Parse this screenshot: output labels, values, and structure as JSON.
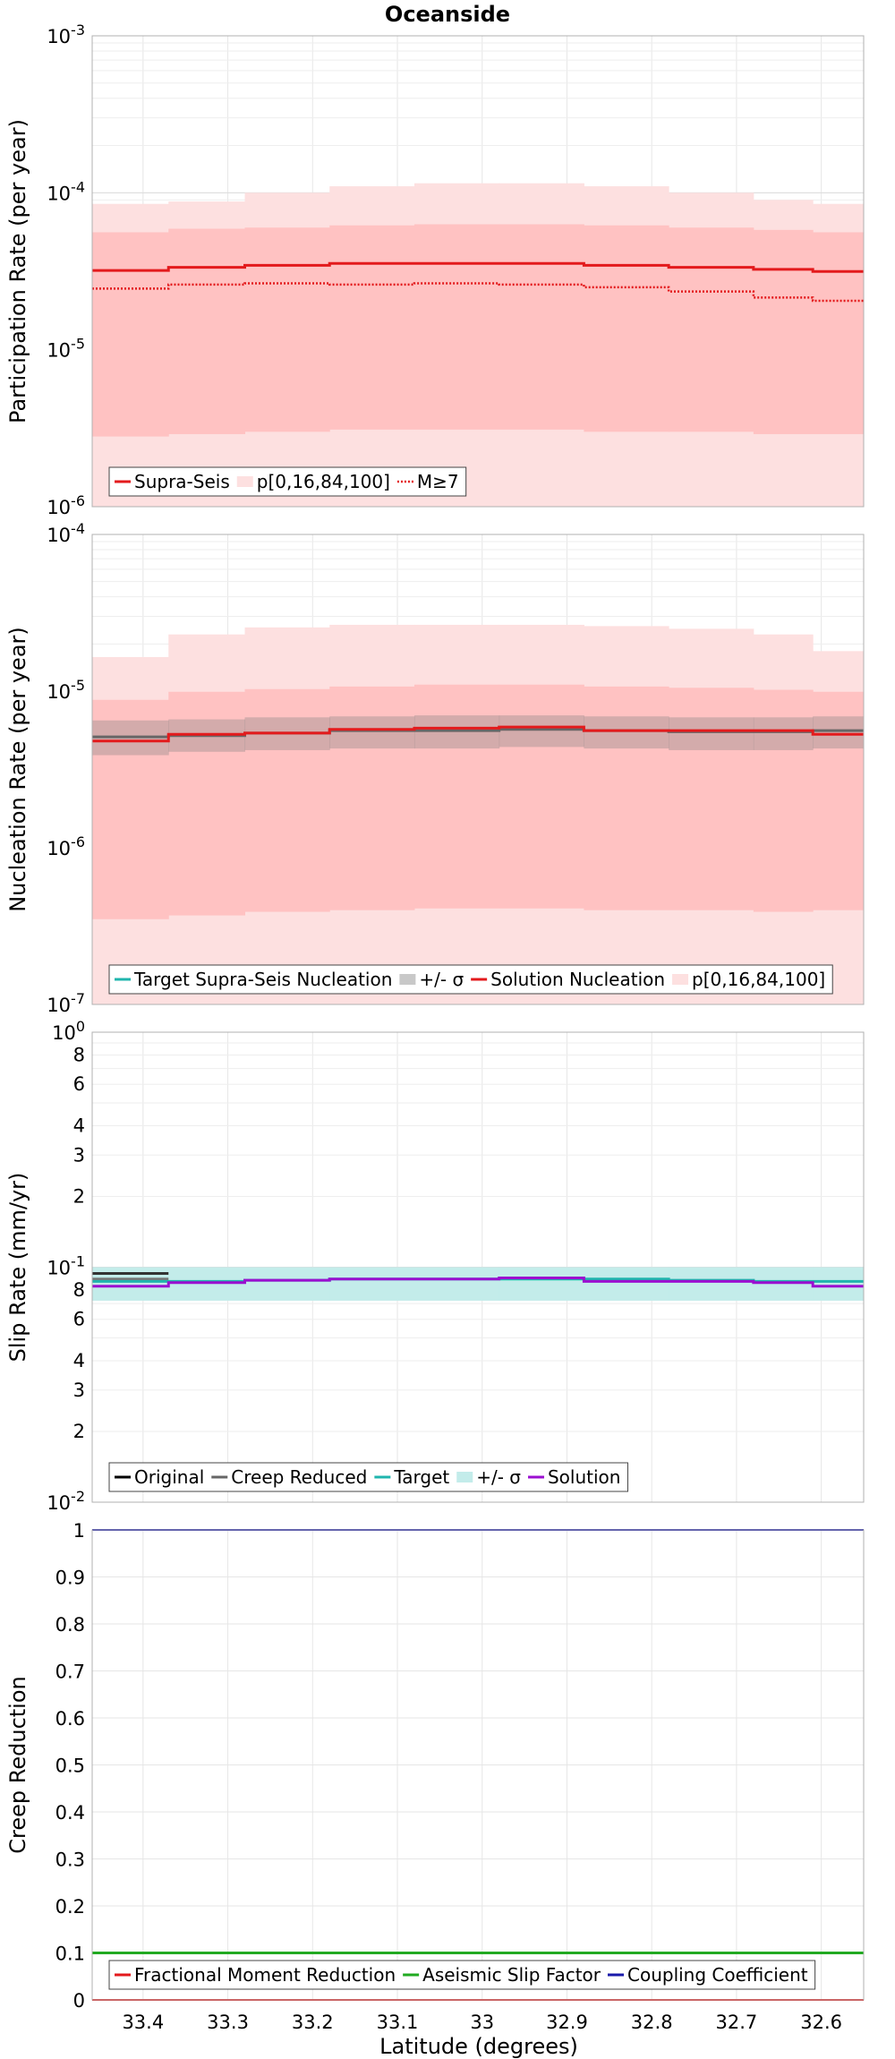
{
  "title": "Oceanside",
  "xlabel": "Latitude (degrees)",
  "x_ticks": [
    "33.4",
    "33.3",
    "33.2",
    "33.1",
    "33",
    "32.9",
    "32.8",
    "32.7",
    "32.6"
  ],
  "colors": {
    "red": "#e31a1c",
    "band_light": "#fde0e0",
    "band_mid": "#ffc2c2",
    "gray": "#666666",
    "teal": "#1fb5ad",
    "teal_band": "#c3ecea",
    "purple": "#9b0fd0",
    "green": "#22aa22",
    "blue": "#1a1aaa",
    "black": "#000000"
  },
  "chart_data": [
    {
      "type": "line",
      "panel": "participation",
      "ylabel": "Participation Rate (per year)",
      "yscale": "log",
      "ylim": [
        1e-06,
        0.001
      ],
      "y_ticks": [
        {
          "base": "10",
          "exp": "-6"
        },
        {
          "base": "10",
          "exp": "-5"
        },
        {
          "base": "10",
          "exp": "-4"
        },
        {
          "base": "10",
          "exp": "-3"
        }
      ],
      "x_bins": [
        33.46,
        33.37,
        33.28,
        33.18,
        33.08,
        32.98,
        32.88,
        32.78,
        32.68,
        32.61,
        32.55
      ],
      "series": [
        {
          "name": "Supra-Seis",
          "style": "step-solid",
          "values": [
            3.2e-05,
            3.35e-05,
            3.45e-05,
            3.55e-05,
            3.55e-05,
            3.55e-05,
            3.45e-05,
            3.35e-05,
            3.25e-05,
            3.15e-05
          ]
        },
        {
          "name": "M≥7",
          "style": "step-dotted",
          "values": [
            2.45e-05,
            2.6e-05,
            2.65e-05,
            2.6e-05,
            2.65e-05,
            2.6e-05,
            2.5e-05,
            2.35e-05,
            2.15e-05,
            2.05e-05
          ]
        }
      ],
      "bands": [
        {
          "name": "p[0,16,84,100]",
          "kind": "outer",
          "low": [
            1e-06,
            1e-06,
            1e-06,
            1e-06,
            1e-06,
            1e-06,
            1e-06,
            1e-06,
            1e-06,
            1e-06
          ],
          "high": [
            8.5e-05,
            8.8e-05,
            0.0001,
            0.00011,
            0.000115,
            0.000115,
            0.00011,
            0.0001,
            9e-05,
            8.5e-05
          ]
        },
        {
          "name": "p[0,16,84,100]",
          "kind": "inner",
          "low": [
            2.8e-06,
            2.9e-06,
            3e-06,
            3.1e-06,
            3.1e-06,
            3.1e-06,
            3e-06,
            3e-06,
            2.9e-06,
            2.9e-06
          ],
          "high": [
            5.6e-05,
            5.9e-05,
            6e-05,
            6.2e-05,
            6.3e-05,
            6.3e-05,
            6.2e-05,
            6e-05,
            5.8e-05,
            5.6e-05
          ]
        }
      ],
      "legend": [
        {
          "label": "Supra-Seis",
          "swatch": "line",
          "color": "#e31a1c"
        },
        {
          "label": "p[0,16,84,100]",
          "swatch": "band",
          "color": "#fde0e0"
        },
        {
          "label": "M≥7",
          "swatch": "dotted",
          "color": "#e31a1c"
        }
      ]
    },
    {
      "type": "line",
      "panel": "nucleation",
      "ylabel": "Nucleation Rate (per year)",
      "yscale": "log",
      "ylim": [
        1e-07,
        0.0001
      ],
      "y_ticks": [
        {
          "base": "10",
          "exp": "-7"
        },
        {
          "base": "10",
          "exp": "-6"
        },
        {
          "base": "10",
          "exp": "-5"
        },
        {
          "base": "10",
          "exp": "-4"
        }
      ],
      "x_bins": [
        33.46,
        33.37,
        33.28,
        33.18,
        33.08,
        32.98,
        32.88,
        32.78,
        32.68,
        32.61,
        32.55
      ],
      "series": [
        {
          "name": "Target Supra-Seis Nucleation",
          "style": "step-solid",
          "color": "#666666",
          "values": [
            5.1e-06,
            5.2e-06,
            5.4e-06,
            5.6e-06,
            5.6e-06,
            5.7e-06,
            5.6e-06,
            5.5e-06,
            5.5e-06,
            5.6e-06
          ]
        },
        {
          "name": "Solution Nucleation",
          "style": "step-solid",
          "values": [
            4.8e-06,
            5.3e-06,
            5.4e-06,
            5.7e-06,
            5.8e-06,
            5.9e-06,
            5.6e-06,
            5.6e-06,
            5.6e-06,
            5.3e-06
          ]
        }
      ],
      "bands": [
        {
          "name": "p[0,16,84,100]",
          "kind": "outer",
          "low": [
            1e-07,
            1e-07,
            1e-07,
            1e-07,
            1e-07,
            1e-07,
            1e-07,
            1e-07,
            1e-07,
            1e-07
          ],
          "high": [
            1.65e-05,
            2.3e-05,
            2.55e-05,
            2.65e-05,
            2.65e-05,
            2.65e-05,
            2.6e-05,
            2.5e-05,
            2.3e-05,
            1.8e-05
          ]
        },
        {
          "name": "p[0,16,84,100]",
          "kind": "inner",
          "low": [
            3.5e-07,
            3.7e-07,
            3.9e-07,
            4e-07,
            4.1e-07,
            4.1e-07,
            4e-07,
            4e-07,
            3.9e-07,
            4e-07
          ],
          "high": [
            8.8e-06,
            9.9e-06,
            1.03e-05,
            1.07e-05,
            1.1e-05,
            1.1e-05,
            1.07e-05,
            1.05e-05,
            1.02e-05,
            9.9e-06
          ]
        },
        {
          "name": "+/- σ",
          "kind": "sigma",
          "low": [
            3.9e-06,
            4.1e-06,
            4.2e-06,
            4.3e-06,
            4.3e-06,
            4.4e-06,
            4.3e-06,
            4.2e-06,
            4.2e-06,
            4.3e-06
          ],
          "high": [
            6.5e-06,
            6.6e-06,
            6.8e-06,
            6.9e-06,
            7e-06,
            7e-06,
            6.9e-06,
            6.8e-06,
            6.8e-06,
            6.9e-06
          ]
        }
      ],
      "legend": [
        {
          "label": "Target Supra-Seis Nucleation",
          "swatch": "line",
          "color": "#1fb5ad"
        },
        {
          "label": "+/- σ",
          "swatch": "band",
          "color": "#c8c8c8"
        },
        {
          "label": "Solution Nucleation",
          "swatch": "line",
          "color": "#e31a1c"
        },
        {
          "label": "p[0,16,84,100]",
          "swatch": "band",
          "color": "#fde0e0"
        }
      ]
    },
    {
      "type": "line",
      "panel": "slip",
      "ylabel": "Slip Rate (mm/yr)",
      "yscale": "log",
      "ylim": [
        0.01,
        1
      ],
      "y_ticks": [
        {
          "base": "10",
          "exp": "-2"
        },
        {
          "base": "10",
          "exp": "-1"
        },
        {
          "base": "10",
          "exp": "0"
        }
      ],
      "y_minor_labels": [
        {
          "value": 0.02,
          "label": "2"
        },
        {
          "value": 0.03,
          "label": "3"
        },
        {
          "value": 0.04,
          "label": "4"
        },
        {
          "value": 0.06,
          "label": "6"
        },
        {
          "value": 0.08,
          "label": "8"
        },
        {
          "value": 0.2,
          "label": "2"
        },
        {
          "value": 0.3,
          "label": "3"
        },
        {
          "value": 0.4,
          "label": "4"
        },
        {
          "value": 0.6,
          "label": "6"
        },
        {
          "value": 0.8,
          "label": "8"
        }
      ],
      "x_bins": [
        33.46,
        33.37,
        33.28,
        33.18,
        33.08,
        32.98,
        32.88,
        32.78,
        32.68,
        32.61,
        32.55
      ],
      "series": [
        {
          "name": "Original",
          "color": "#333333",
          "values": [
            0.094,
            null,
            null,
            null,
            null,
            null,
            null,
            null,
            null,
            null
          ]
        },
        {
          "name": "Creep Reduced",
          "color": "#777777",
          "values": [
            0.089,
            null,
            null,
            null,
            null,
            null,
            null,
            null,
            null,
            null
          ]
        },
        {
          "name": "Target",
          "color": "#1fb5ad",
          "values": [
            0.087,
            0.087,
            0.088,
            0.089,
            0.089,
            0.089,
            0.089,
            0.088,
            0.087,
            0.087
          ]
        },
        {
          "name": "Solution",
          "color": "#9b0fd0",
          "values": [
            0.083,
            0.086,
            0.088,
            0.089,
            0.089,
            0.09,
            0.087,
            0.087,
            0.086,
            0.083
          ]
        }
      ],
      "bands": [
        {
          "name": "+/- σ",
          "low": [
            0.072,
            0.072,
            0.072,
            0.072,
            0.072,
            0.072,
            0.072,
            0.072,
            0.072,
            0.072
          ],
          "high": [
            0.1,
            0.1,
            0.1,
            0.1,
            0.1,
            0.1,
            0.1,
            0.1,
            0.1,
            0.1
          ]
        }
      ],
      "legend": [
        {
          "label": "Original",
          "swatch": "line",
          "color": "#000000"
        },
        {
          "label": "Creep Reduced",
          "swatch": "line",
          "color": "#666666"
        },
        {
          "label": "Target",
          "swatch": "line",
          "color": "#1fb5ad"
        },
        {
          "label": "+/- σ",
          "swatch": "band",
          "color": "#c3ecea"
        },
        {
          "label": "Solution",
          "swatch": "line",
          "color": "#9b0fd0"
        }
      ]
    },
    {
      "type": "line",
      "panel": "creep",
      "ylabel": "Creep Reduction",
      "yscale": "linear",
      "ylim": [
        0,
        1
      ],
      "y_ticks": [
        "0",
        "0.1",
        "0.2",
        "0.3",
        "0.4",
        "0.5",
        "0.6",
        "0.7",
        "0.8",
        "0.9",
        "1"
      ],
      "series": [
        {
          "name": "Fractional Moment Reduction",
          "color": "#e31a1c",
          "value": 0
        },
        {
          "name": "Aseismic Slip Factor",
          "color": "#22aa22",
          "value": 0.1
        },
        {
          "name": "Coupling Coefficient",
          "color": "#1a1aaa",
          "value": 1
        }
      ],
      "legend": [
        {
          "label": "Fractional Moment Reduction",
          "swatch": "line",
          "color": "#e31a1c"
        },
        {
          "label": "Aseismic Slip Factor",
          "swatch": "line",
          "color": "#22aa22"
        },
        {
          "label": "Coupling Coefficient",
          "swatch": "line",
          "color": "#1a1aaa"
        }
      ]
    }
  ]
}
